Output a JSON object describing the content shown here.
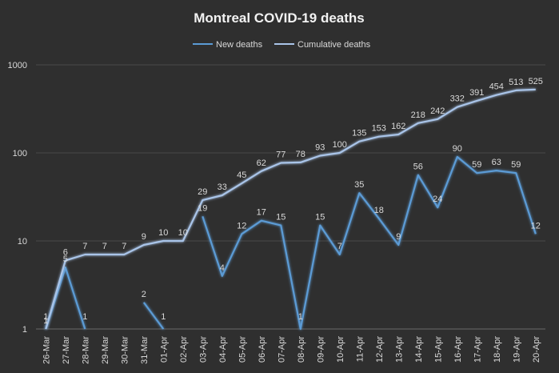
{
  "chart_data": {
    "type": "line",
    "title": "Montreal COVID-19 deaths",
    "y_scale": "log",
    "ylim": [
      1,
      1000
    ],
    "y_ticks": [
      "1",
      "10",
      "100",
      "1000"
    ],
    "grid": true,
    "legend_position": "top",
    "categories": [
      "26-Mar",
      "27-Mar",
      "28-Mar",
      "29-Mar",
      "30-Mar",
      "31-Mar",
      "01-Apr",
      "02-Apr",
      "03-Apr",
      "04-Apr",
      "05-Apr",
      "06-Apr",
      "07-Apr",
      "08-Apr",
      "09-Apr",
      "10-Apr",
      "11-Apr",
      "12-Apr",
      "13-Apr",
      "14-Apr",
      "15-Apr",
      "16-Apr",
      "17-Apr",
      "18-Apr",
      "19-Apr",
      "20-Apr"
    ],
    "series": [
      {
        "name": "New deaths",
        "color": "#5b9bd5",
        "values": [
          1,
          5,
          1,
          null,
          null,
          2,
          1,
          null,
          19,
          4,
          12,
          17,
          15,
          1,
          15,
          7,
          35,
          18,
          9,
          56,
          24,
          90,
          59,
          63,
          59,
          12
        ]
      },
      {
        "name": "Cumulative deaths",
        "color": "#a9c4e8",
        "values": [
          1,
          6,
          7,
          7,
          7,
          9,
          10,
          10,
          29,
          33,
          45,
          62,
          77,
          78,
          93,
          100,
          135,
          153,
          162,
          218,
          242,
          332,
          391,
          454,
          513,
          525
        ]
      }
    ]
  }
}
